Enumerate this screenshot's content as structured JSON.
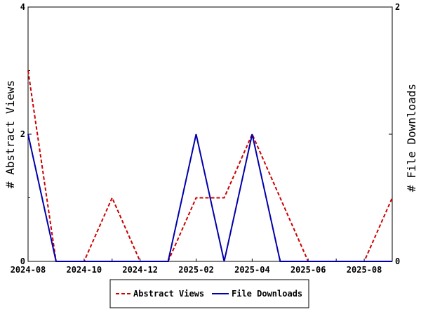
{
  "chart_data": {
    "type": "line",
    "title": "",
    "xlabel": "",
    "ylabel_left": "# Abstract Views",
    "ylabel_right": "# File Downloads",
    "ylim_left": [
      0,
      4
    ],
    "ylim_right": [
      0,
      2
    ],
    "y_ticks_left": [
      "0",
      "2",
      "4"
    ],
    "y_ticks_right": [
      "0",
      "1",
      "2"
    ],
    "x_months": [
      "2024-08",
      "2024-09",
      "2024-10",
      "2024-11",
      "2024-12",
      "2025-01",
      "2025-02",
      "2025-03",
      "2025-04",
      "2025-05",
      "2025-06",
      "2025-07",
      "2025-08",
      "2025-09"
    ],
    "x_tick_labels": [
      "2024-08",
      "2024-10",
      "2024-12",
      "2025-02",
      "2025-04",
      "2025-06",
      "2025-08"
    ],
    "series": [
      {
        "name": "Abstract Views",
        "axis": "left",
        "color": "#cc0000",
        "dash": "dashed",
        "values": [
          3,
          0,
          0,
          1,
          0,
          0,
          1,
          1,
          2,
          1,
          0,
          0,
          0,
          1
        ]
      },
      {
        "name": "File Downloads",
        "axis": "right",
        "color": "#0000aa",
        "dash": "solid",
        "values": [
          1,
          0,
          0,
          0,
          0,
          0,
          1,
          0,
          1,
          0,
          0,
          0,
          0,
          0
        ]
      }
    ],
    "grid": false,
    "legend_position": "bottom"
  },
  "legend": {
    "abstract_label": "Abstract Views",
    "downloads_label": "File Downloads"
  }
}
